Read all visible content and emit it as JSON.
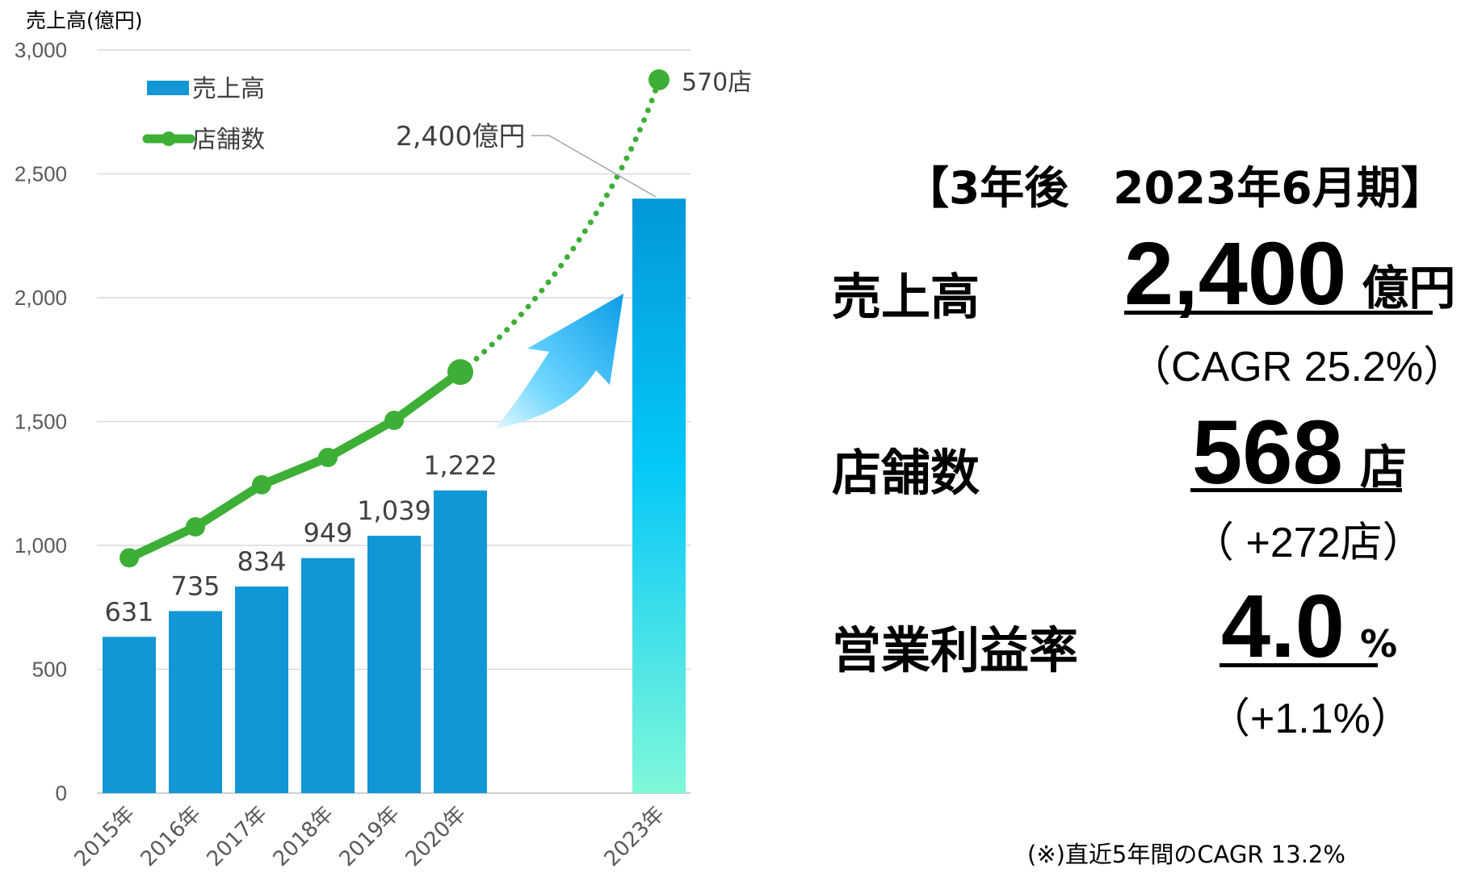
{
  "chart_data": {
    "type": "bar",
    "ylabel": "売上高(億円)",
    "y_ticks": [
      "3,000",
      "2,500",
      "2,000",
      "1,500",
      "1,000",
      "500",
      "0"
    ],
    "ylim": [
      0,
      3000
    ],
    "grid": true,
    "legend_position": "top-left",
    "categories": [
      "2015年",
      "2016年",
      "2017年",
      "2018年",
      "2019年",
      "2020年",
      "2023年"
    ],
    "series": [
      {
        "name": "売上高",
        "kind": "bar",
        "values": [
          631,
          735,
          834,
          949,
          1039,
          1222,
          2400
        ],
        "data_labels": [
          "631",
          "735",
          "834",
          "949",
          "1,039",
          "1,222",
          ""
        ],
        "color": "#1196d6",
        "projection_gradient": [
          "#0398d8",
          "#05c8f8",
          "#7ff8d9"
        ]
      },
      {
        "name": "店舗数",
        "kind": "line",
        "values": [
          950,
          1075,
          1245,
          1355,
          1505,
          1700,
          2880
        ],
        "color": "#3daf36",
        "projection_style": "dotted"
      }
    ],
    "annotations": {
      "sales_target": "2,400億円",
      "store_target": "570店"
    }
  },
  "summary": {
    "heading": "【3年後　2023年6月期】",
    "sales": {
      "label": "売上高",
      "value": "2,400",
      "unit": "億円",
      "sub": "（CAGR 25.2%）"
    },
    "stores": {
      "label": "店舗数",
      "value": "568",
      "unit": "店",
      "sub": "（ +272店）"
    },
    "margin": {
      "label": "営業利益率",
      "value": "4.0",
      "unit": "%",
      "sub": "（+1.1%）"
    },
    "footnote": "(※)直近5年間のCAGR 13.2%"
  },
  "colors": {
    "bar": "#1196d6",
    "line": "#3daf36",
    "arrow": "#0aa6f0",
    "grid": "#d9d9d9"
  }
}
